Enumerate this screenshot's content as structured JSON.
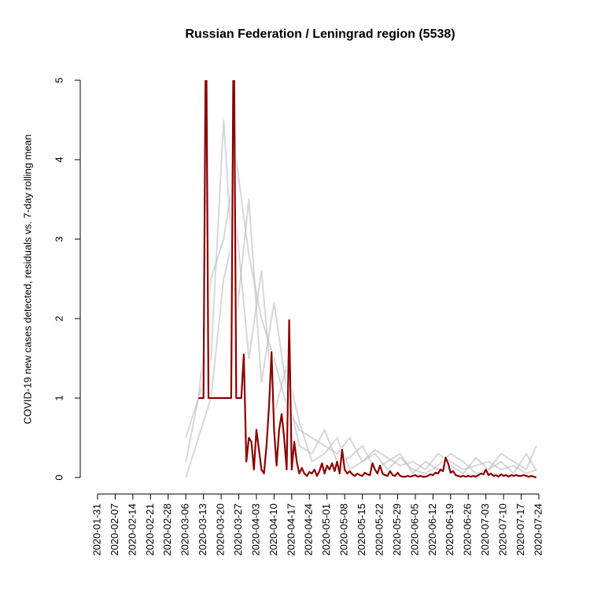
{
  "chart_data": {
    "type": "line",
    "title": "Russian Federation / Leningrad region (5538)",
    "ylabel": "COVID-19 new cases detected, residuals vs. 7-day rolling mean",
    "xlim": [
      "2020-01-31",
      "2020-07-24"
    ],
    "xticks": [
      "2020-01-31",
      "2020-02-07",
      "2020-02-14",
      "2020-02-21",
      "2020-02-28",
      "2020-03-06",
      "2020-03-13",
      "2020-03-20",
      "2020-03-27",
      "2020-04-03",
      "2020-04-10",
      "2020-04-17",
      "2020-04-24",
      "2020-05-01",
      "2020-05-08",
      "2020-05-15",
      "2020-05-22",
      "2020-05-29",
      "2020-06-05",
      "2020-06-12",
      "2020-06-19",
      "2020-06-26",
      "2020-07-03",
      "2020-07-10",
      "2020-07-17",
      "2020-07-24"
    ],
    "ylim": [
      0,
      5
    ],
    "yticks": [
      0,
      1,
      2,
      3,
      4,
      5
    ],
    "series": [
      {
        "color": "#bdbdbd",
        "x": [
          "2020-03-06",
          "2020-03-11",
          "2020-03-16",
          "2020-03-21",
          "2020-03-26",
          "2020-03-31",
          "2020-04-05",
          "2020-04-10",
          "2020-04-15",
          "2020-04-20",
          "2020-04-25",
          "2020-04-30",
          "2020-05-05",
          "2020-05-10",
          "2020-05-15",
          "2020-05-20",
          "2020-05-25",
          "2020-05-30",
          "2020-06-04",
          "2020-06-09",
          "2020-06-14",
          "2020-06-19",
          "2020-06-24",
          "2020-06-29",
          "2020-07-04",
          "2020-07-09",
          "2020-07-14",
          "2020-07-19",
          "2020-07-23"
        ],
        "values": [
          0.5,
          1,
          2.5,
          3,
          4,
          2.8,
          2,
          1.5,
          0.9,
          0.6,
          0.5,
          0.4,
          0.3,
          0.5,
          0.2,
          0.35,
          0.25,
          0.15,
          0.2,
          0.1,
          0.3,
          0.2,
          0.1,
          0.15,
          0.2,
          0.1,
          0.15,
          0.05,
          0.1
        ]
      },
      {
        "color": "#bdbdbd",
        "x": [
          "2020-03-06",
          "2020-03-11",
          "2020-03-16",
          "2020-03-21",
          "2020-03-26",
          "2020-03-31",
          "2020-04-05",
          "2020-04-10",
          "2020-04-15",
          "2020-04-20",
          "2020-04-25",
          "2020-04-30",
          "2020-05-05",
          "2020-05-10",
          "2020-05-15",
          "2020-05-20",
          "2020-05-25",
          "2020-05-30",
          "2020-06-04",
          "2020-06-09",
          "2020-06-14",
          "2020-06-19",
          "2020-06-24",
          "2020-06-29",
          "2020-07-04",
          "2020-07-09",
          "2020-07-14",
          "2020-07-19",
          "2020-07-23"
        ],
        "values": [
          0.2,
          1,
          1.5,
          4.5,
          2,
          3.5,
          1.2,
          2.2,
          1.1,
          0.4,
          0.3,
          0.6,
          0.2,
          0.25,
          0.4,
          0.1,
          0.2,
          0.3,
          0.05,
          0.2,
          0.1,
          0.15,
          0.05,
          0.25,
          0.1,
          0.2,
          0.05,
          0.3,
          0.08
        ]
      },
      {
        "color": "#bdbdbd",
        "x": [
          "2020-03-06",
          "2020-03-11",
          "2020-03-16",
          "2020-03-21",
          "2020-03-26",
          "2020-03-31",
          "2020-04-05",
          "2020-04-10",
          "2020-04-15",
          "2020-04-20",
          "2020-04-25",
          "2020-04-30",
          "2020-05-05",
          "2020-05-10",
          "2020-05-15",
          "2020-05-20",
          "2020-05-25",
          "2020-05-30",
          "2020-06-04",
          "2020-06-09",
          "2020-06-14",
          "2020-06-19",
          "2020-06-24",
          "2020-06-29",
          "2020-07-04",
          "2020-07-09",
          "2020-07-14",
          "2020-07-19",
          "2020-07-23"
        ],
        "values": [
          0,
          0.5,
          1,
          2.5,
          3.2,
          1.5,
          2.6,
          0.8,
          1.4,
          0.7,
          0.2,
          0.3,
          0.5,
          0.1,
          0.2,
          0.3,
          0.1,
          0.25,
          0.1,
          0.05,
          0.15,
          0.3,
          0.2,
          0.05,
          0.1,
          0.3,
          0.2,
          0.1,
          0.4
        ]
      },
      {
        "color": "#8b0000",
        "x": [
          "2020-03-11",
          "2020-03-12",
          "2020-03-13",
          "2020-03-14",
          "2020-03-15",
          "2020-03-16",
          "2020-03-17",
          "2020-03-18",
          "2020-03-19",
          "2020-03-20",
          "2020-03-21",
          "2020-03-22",
          "2020-03-23",
          "2020-03-24",
          "2020-03-25",
          "2020-03-26",
          "2020-03-27",
          "2020-03-28",
          "2020-03-29",
          "2020-03-30",
          "2020-03-31",
          "2020-04-01",
          "2020-04-02",
          "2020-04-03",
          "2020-04-04",
          "2020-04-05",
          "2020-04-06",
          "2020-04-07",
          "2020-04-08",
          "2020-04-09",
          "2020-04-10",
          "2020-04-11",
          "2020-04-12",
          "2020-04-13",
          "2020-04-14",
          "2020-04-15",
          "2020-04-16",
          "2020-04-17",
          "2020-04-18",
          "2020-04-19",
          "2020-04-20",
          "2020-04-21",
          "2020-04-22",
          "2020-04-23",
          "2020-04-24",
          "2020-04-25",
          "2020-04-26",
          "2020-04-27",
          "2020-04-28",
          "2020-04-29",
          "2020-04-30",
          "2020-05-01",
          "2020-05-02",
          "2020-05-03",
          "2020-05-04",
          "2020-05-05",
          "2020-05-06",
          "2020-05-07",
          "2020-05-08",
          "2020-05-09",
          "2020-05-10",
          "2020-05-11",
          "2020-05-12",
          "2020-05-13",
          "2020-05-14",
          "2020-05-15",
          "2020-05-16",
          "2020-05-17",
          "2020-05-18",
          "2020-05-19",
          "2020-05-20",
          "2020-05-21",
          "2020-05-22",
          "2020-05-23",
          "2020-05-24",
          "2020-05-25",
          "2020-05-26",
          "2020-05-27",
          "2020-05-28",
          "2020-05-29",
          "2020-05-30",
          "2020-05-31",
          "2020-06-01",
          "2020-06-02",
          "2020-06-03",
          "2020-06-04",
          "2020-06-05",
          "2020-06-06",
          "2020-06-07",
          "2020-06-08",
          "2020-06-09",
          "2020-06-10",
          "2020-06-11",
          "2020-06-12",
          "2020-06-13",
          "2020-06-14",
          "2020-06-15",
          "2020-06-16",
          "2020-06-17",
          "2020-06-18",
          "2020-06-19",
          "2020-06-20",
          "2020-06-21",
          "2020-06-22",
          "2020-06-23",
          "2020-06-24",
          "2020-06-25",
          "2020-06-26",
          "2020-06-27",
          "2020-06-28",
          "2020-06-29",
          "2020-06-30",
          "2020-07-01",
          "2020-07-02",
          "2020-07-03",
          "2020-07-04",
          "2020-07-05",
          "2020-07-06",
          "2020-07-07",
          "2020-07-08",
          "2020-07-09",
          "2020-07-10",
          "2020-07-11",
          "2020-07-12",
          "2020-07-13",
          "2020-07-14",
          "2020-07-15",
          "2020-07-16",
          "2020-07-17",
          "2020-07-18",
          "2020-07-19",
          "2020-07-20",
          "2020-07-21",
          "2020-07-22",
          "2020-07-23"
        ],
        "values": [
          1,
          1,
          1,
          6,
          1,
          1,
          1,
          1,
          1,
          1,
          1,
          1,
          1,
          1,
          6,
          1,
          1,
          1,
          1.55,
          0.2,
          0.5,
          0.45,
          0.1,
          0.6,
          0.35,
          0.1,
          0.05,
          0.4,
          0.9,
          1.58,
          0.6,
          0.15,
          0.6,
          0.8,
          0.5,
          0.1,
          1.98,
          0.1,
          0.45,
          0.2,
          0.05,
          0.12,
          0.05,
          0.02,
          0.07,
          0.05,
          0.1,
          0.02,
          0.08,
          0.18,
          0.05,
          0.15,
          0.1,
          0.18,
          0.08,
          0.2,
          0.05,
          0.35,
          0.1,
          0.05,
          0.08,
          0.04,
          0.02,
          0.05,
          0.03,
          0.02,
          0.06,
          0.04,
          0.03,
          0.18,
          0.1,
          0.05,
          0.15,
          0.05,
          0.03,
          0.02,
          0.08,
          0.03,
          0.02,
          0.06,
          0.02,
          0.01,
          0.01,
          0.02,
          0.01,
          0.02,
          0.03,
          0.01,
          0.02,
          0.01,
          0.01,
          0.02,
          0.04,
          0.03,
          0.06,
          0.05,
          0.1,
          0.08,
          0.25,
          0.18,
          0.06,
          0.08,
          0.03,
          0.02,
          0.01,
          0.02,
          0.01,
          0.02,
          0.01,
          0.02,
          0.01,
          0.03,
          0.05,
          0.04,
          0.1,
          0.03,
          0.05,
          0.02,
          0.03,
          0.01,
          0.04,
          0.02,
          0.03,
          0.01,
          0.03,
          0.02,
          0.03,
          0.02,
          0.02,
          0.03,
          0.02,
          0.01,
          0.02,
          0.01,
          0
        ]
      }
    ]
  }
}
